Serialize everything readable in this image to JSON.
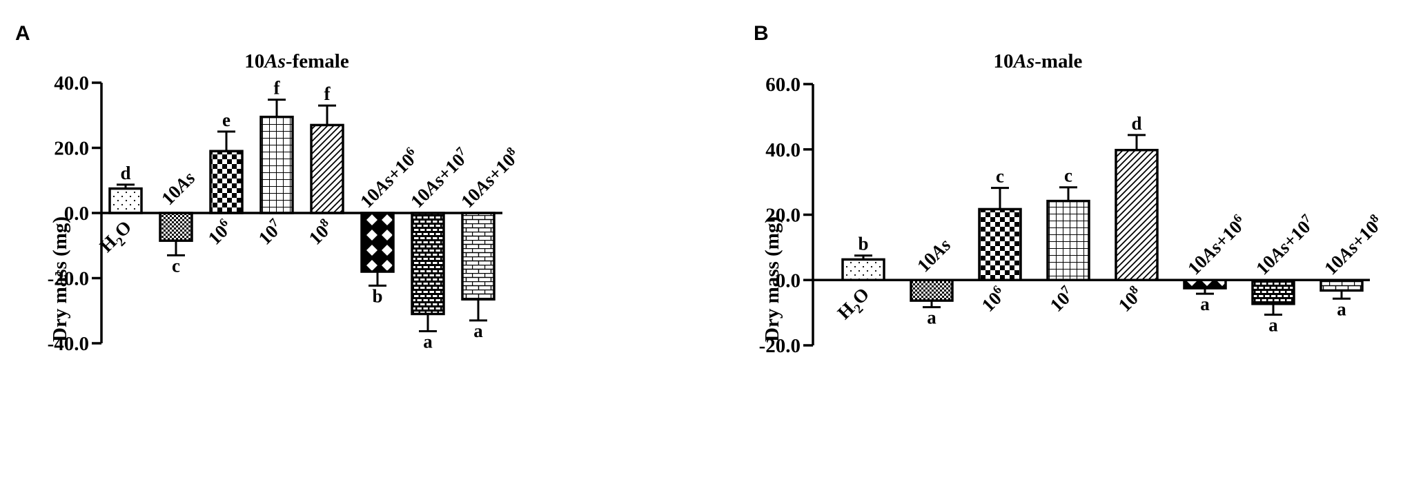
{
  "chart_data": [
    {
      "type": "bar",
      "panel": "A",
      "title": "10As-female",
      "ylabel": "Dry mass (mg)",
      "xlabel": "",
      "ylim": [
        -40,
        40
      ],
      "yticks": [
        "40.0",
        "20.0",
        "0.0",
        "-20.0",
        "-40.0"
      ],
      "categories": [
        "H2O",
        "10As",
        "10^6",
        "10^7",
        "10^8",
        "10As+10^6",
        "10As+10^7",
        "10As+10^8"
      ],
      "values": [
        7.5,
        -8.5,
        19.0,
        29.5,
        27.0,
        -18.0,
        -31.0,
        -26.5
      ],
      "errors": [
        1.2,
        4.5,
        6.0,
        5.3,
        6.0,
        4.3,
        5.3,
        6.5
      ],
      "significance": [
        "d",
        "c",
        "e",
        "f",
        "f",
        "b",
        "a",
        "a"
      ]
    },
    {
      "type": "bar",
      "panel": "B",
      "title": "10As-male",
      "ylabel": "Dry mass (mg)",
      "xlabel": "",
      "ylim": [
        -20,
        60
      ],
      "yticks": [
        "60.0",
        "40.0",
        "20.0",
        "0.0",
        "-20.0"
      ],
      "categories": [
        "H2O",
        "10As",
        "10^6",
        "10^7",
        "10^8",
        "10As+10^6",
        "10As+10^7",
        "10As+10^8"
      ],
      "values": [
        6.3,
        -6.3,
        21.7,
        24.2,
        39.8,
        -2.5,
        -7.3,
        -3.2
      ],
      "errors": [
        1.2,
        2.0,
        6.5,
        4.2,
        4.6,
        1.7,
        3.3,
        2.5
      ],
      "significance": [
        "b",
        "a",
        "c",
        "c",
        "d",
        "a",
        "a",
        "a"
      ]
    }
  ]
}
